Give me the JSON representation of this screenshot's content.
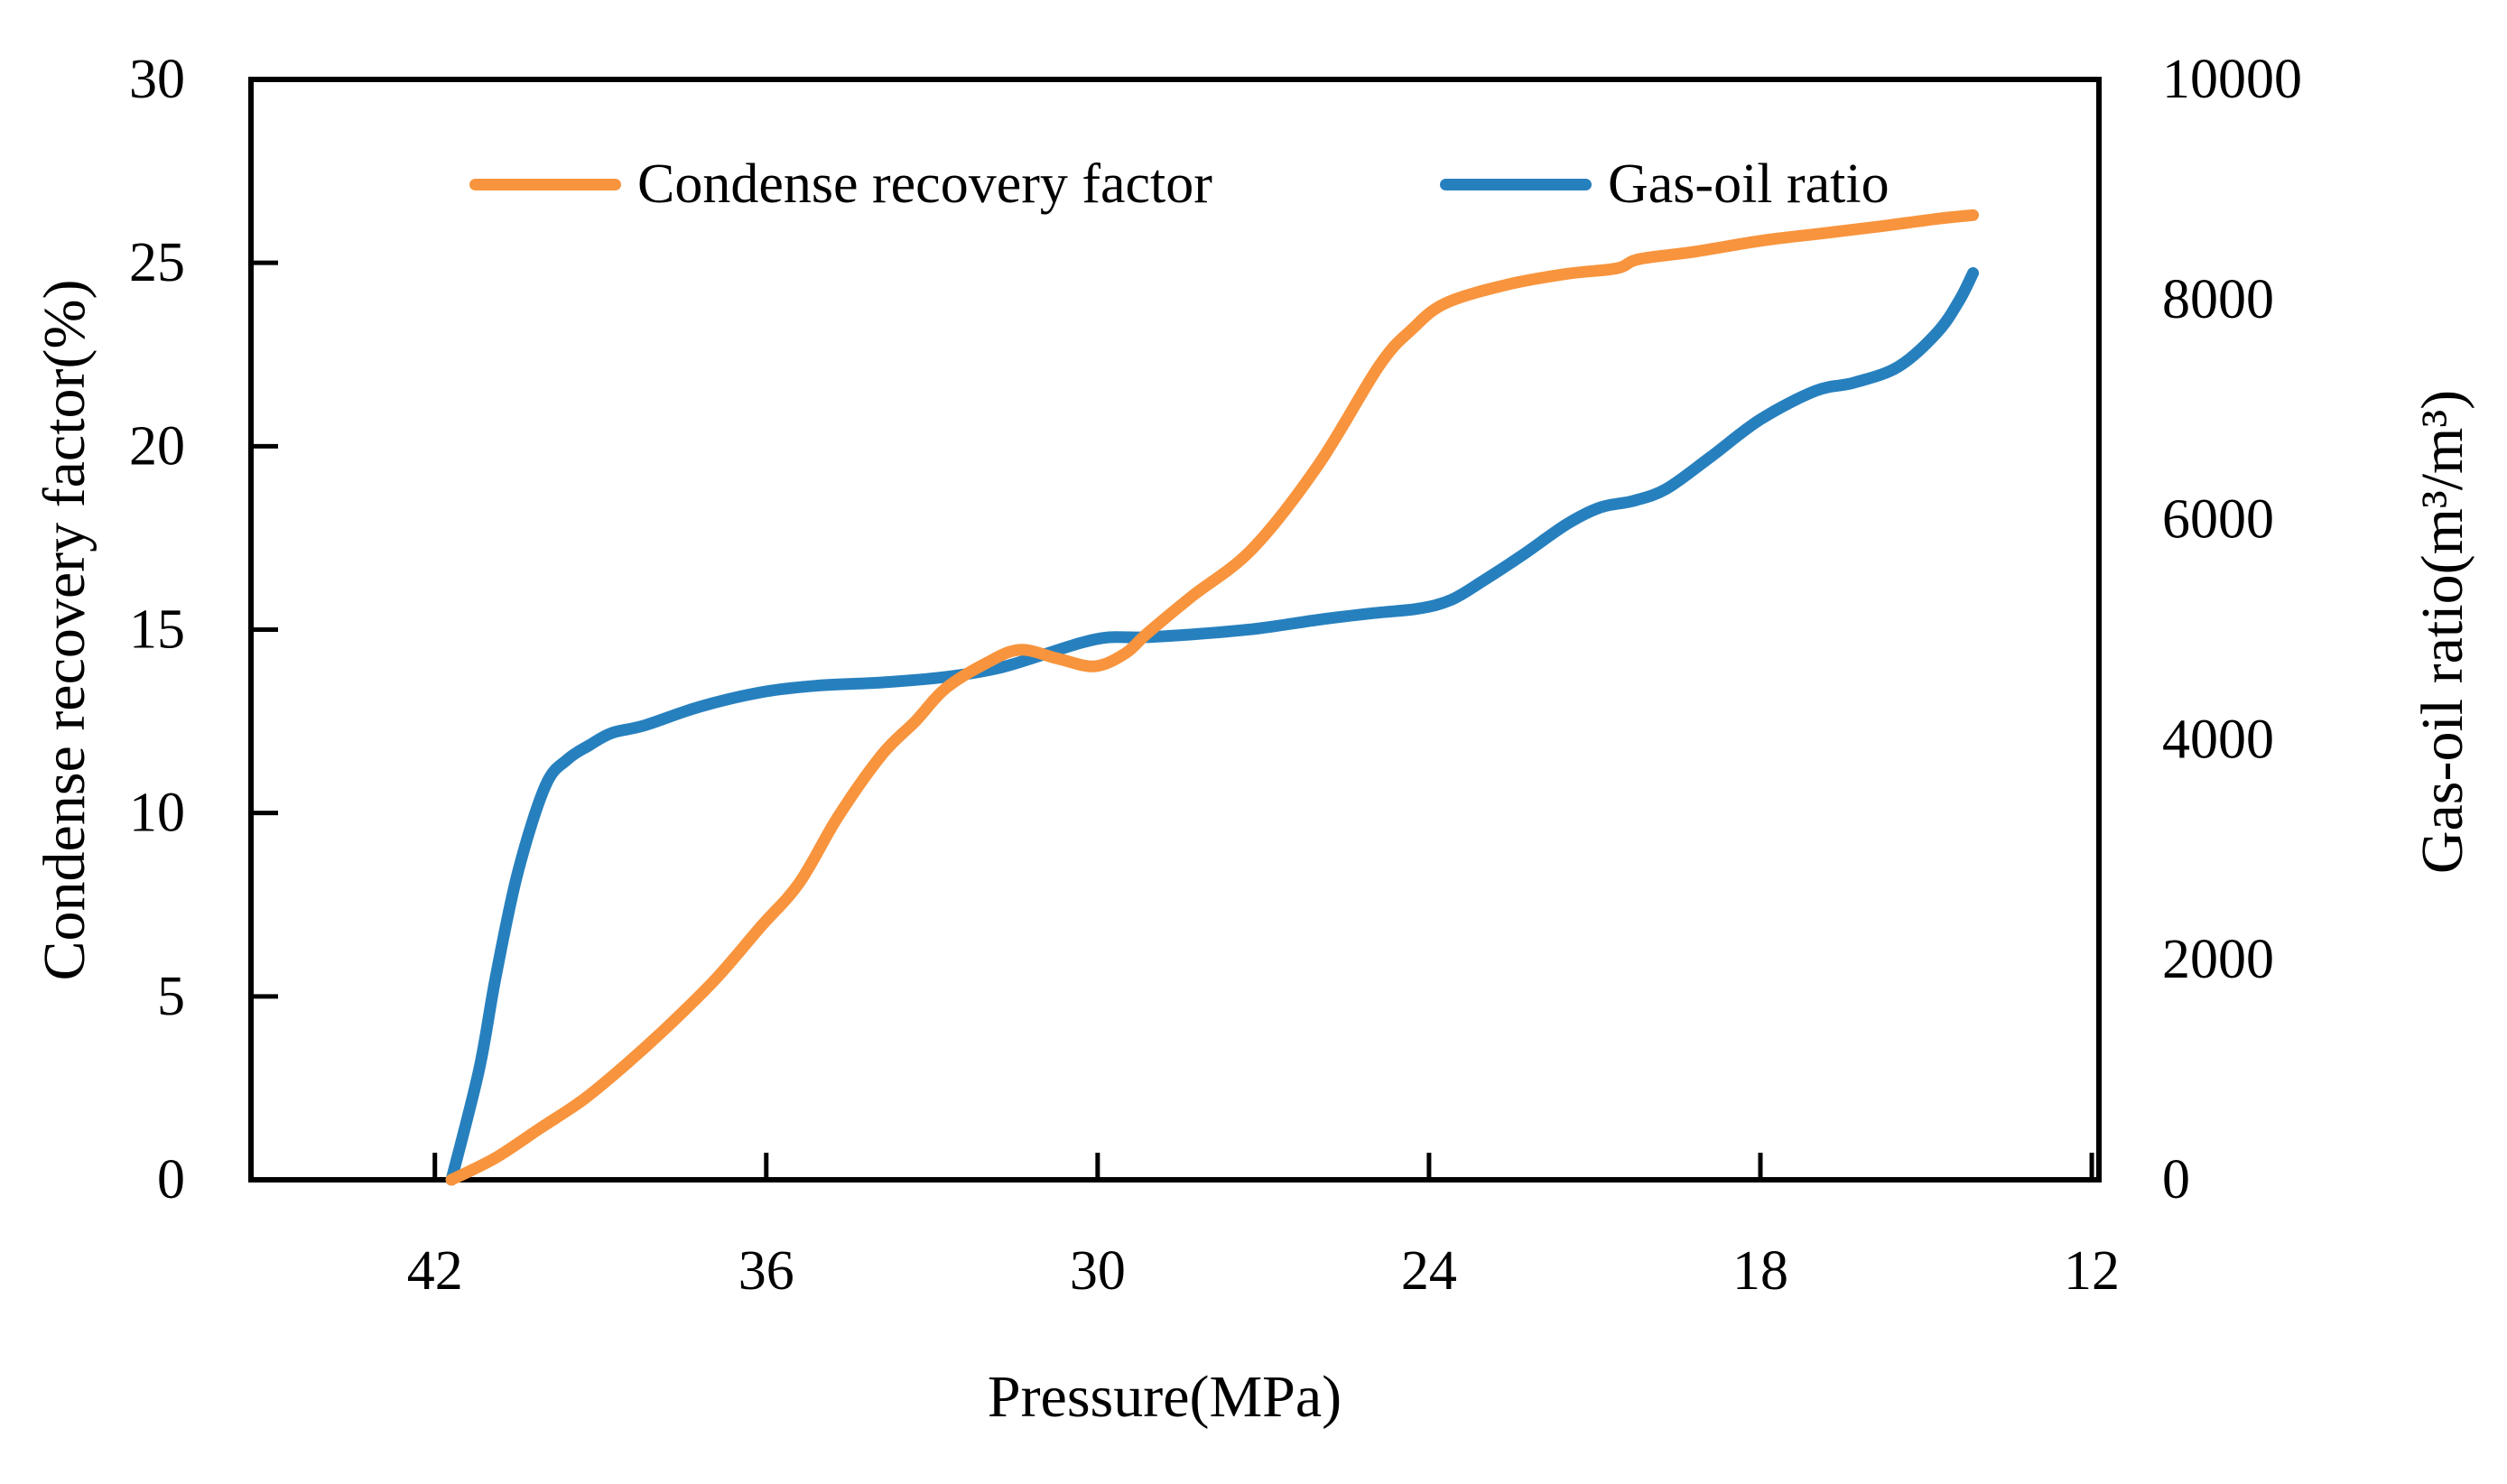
{
  "chart_data": {
    "type": "line",
    "title": "",
    "legend_position": "top-inside",
    "grid": false,
    "background": "#FFFFFF",
    "axis_color": "#000000",
    "x_axis": {
      "label": "Pressure(MPa)",
      "unit": "MPa",
      "reversed": true,
      "ticks": [
        42,
        36,
        30,
        24,
        18,
        12
      ],
      "range": [
        45.33,
        11.87
      ]
    },
    "y_axis_left": {
      "label": "Condense recovery factor(%)",
      "unit": "%",
      "ticks": [
        0,
        5,
        10,
        15,
        20,
        25,
        30
      ],
      "range": [
        0,
        30
      ]
    },
    "y_axis_right": {
      "label": "Gas-oil ratio(m³/m³)",
      "unit": "m³/m³",
      "ticks": [
        0,
        2000,
        4000,
        6000,
        8000,
        10000
      ],
      "range": [
        0,
        10000
      ]
    },
    "series": [
      {
        "name": "Condense recovery factor",
        "axis": "left",
        "color": "#F8943D",
        "unit": "%",
        "points": [
          [
            41.7,
            0.0
          ],
          [
            40.9,
            0.6
          ],
          [
            40.1,
            1.4
          ],
          [
            39.3,
            2.2
          ],
          [
            38.5,
            3.2
          ],
          [
            37.7,
            4.3
          ],
          [
            36.9,
            5.5
          ],
          [
            36.1,
            6.9
          ],
          [
            35.4,
            8.1
          ],
          [
            34.7,
            9.9
          ],
          [
            33.9,
            11.6
          ],
          [
            33.3,
            12.5
          ],
          [
            32.75,
            13.4
          ],
          [
            32.0,
            14.1
          ],
          [
            31.4,
            14.45
          ],
          [
            30.7,
            14.2
          ],
          [
            30.05,
            14.0
          ],
          [
            29.5,
            14.35
          ],
          [
            29.1,
            14.9
          ],
          [
            28.3,
            15.9
          ],
          [
            27.2,
            17.2
          ],
          [
            26.0,
            19.5
          ],
          [
            24.9,
            22.2
          ],
          [
            24.3,
            23.2
          ],
          [
            23.7,
            23.9
          ],
          [
            22.6,
            24.4
          ],
          [
            21.5,
            24.7
          ],
          [
            20.6,
            24.85
          ],
          [
            20.2,
            25.1
          ],
          [
            19.2,
            25.3
          ],
          [
            18.0,
            25.6
          ],
          [
            16.9,
            25.8
          ],
          [
            15.8,
            26.0
          ],
          [
            14.8,
            26.2
          ],
          [
            14.15,
            26.3
          ]
        ]
      },
      {
        "name": "Gas-oil ratio",
        "axis": "right",
        "color": "#2780BE",
        "unit": "m³/m³",
        "points": [
          [
            41.7,
            0
          ],
          [
            41.2,
            1000
          ],
          [
            40.9,
            1840
          ],
          [
            40.5,
            2790
          ],
          [
            40.0,
            3580
          ],
          [
            39.6,
            3820
          ],
          [
            39.2,
            3950
          ],
          [
            38.8,
            4060
          ],
          [
            38.2,
            4130
          ],
          [
            37.2,
            4300
          ],
          [
            36.1,
            4430
          ],
          [
            35.1,
            4490
          ],
          [
            33.9,
            4520
          ],
          [
            32.75,
            4570
          ],
          [
            31.8,
            4650
          ],
          [
            31.0,
            4770
          ],
          [
            30.3,
            4880
          ],
          [
            29.8,
            4930
          ],
          [
            29.2,
            4930
          ],
          [
            28.2,
            4960
          ],
          [
            27.1,
            5010
          ],
          [
            26.0,
            5090
          ],
          [
            25.0,
            5150
          ],
          [
            24.2,
            5190
          ],
          [
            23.6,
            5270
          ],
          [
            23.0,
            5450
          ],
          [
            22.3,
            5680
          ],
          [
            21.5,
            5960
          ],
          [
            20.9,
            6110
          ],
          [
            20.3,
            6170
          ],
          [
            19.7,
            6280
          ],
          [
            18.9,
            6570
          ],
          [
            18.0,
            6910
          ],
          [
            17.0,
            7170
          ],
          [
            16.3,
            7245
          ],
          [
            15.5,
            7390
          ],
          [
            14.8,
            7700
          ],
          [
            14.4,
            7990
          ],
          [
            14.15,
            8240
          ]
        ]
      }
    ]
  }
}
